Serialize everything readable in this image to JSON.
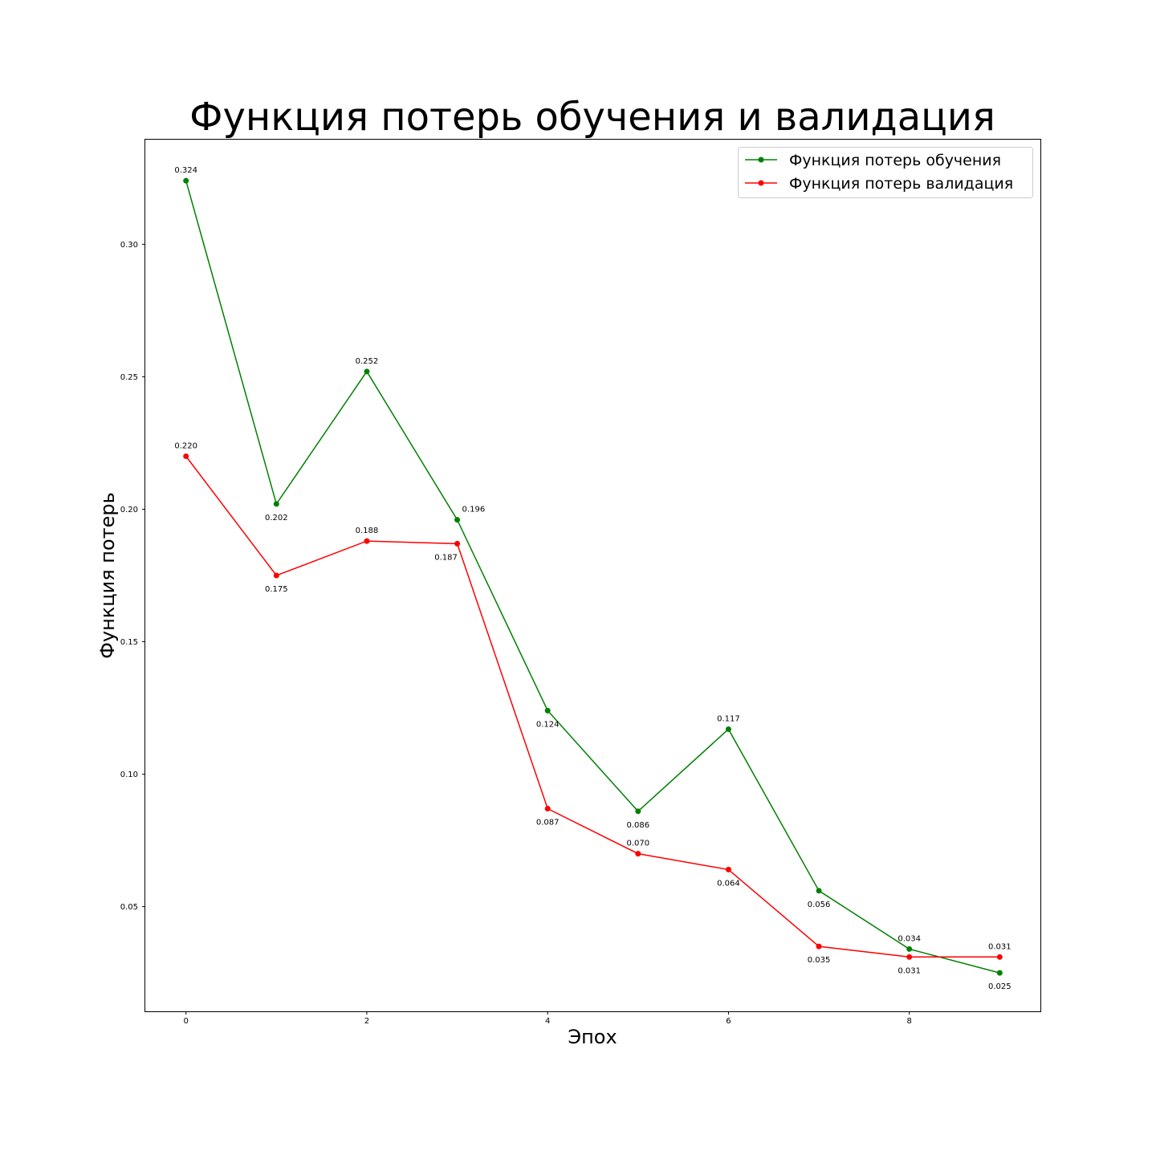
{
  "chart_data": {
    "type": "line",
    "title": "Функция потерь обучения и валидация",
    "xlabel": "Эпох",
    "ylabel": "Функция потерь",
    "xlim": [
      -0.45,
      9.45
    ],
    "ylim": [
      0.0105,
      0.3395
    ],
    "x": [
      0,
      1,
      2,
      3,
      4,
      5,
      6,
      7,
      8,
      9
    ],
    "xticks": [
      0,
      2,
      4,
      6,
      8
    ],
    "xtick_labels": [
      "0",
      "2",
      "4",
      "6",
      "8"
    ],
    "yticks": [
      0.05,
      0.1,
      0.15,
      0.2,
      0.25,
      0.3
    ],
    "ytick_labels": [
      "0.05",
      "0.10",
      "0.15",
      "0.20",
      "0.25",
      "0.30"
    ],
    "grid": false,
    "legend_position": "top-right",
    "series": [
      {
        "name": "Функция потерь обучения",
        "color": "#008000",
        "marker": "circle",
        "values": [
          0.324,
          0.202,
          0.252,
          0.196,
          0.124,
          0.086,
          0.117,
          0.056,
          0.034,
          0.025
        ],
        "labels": [
          "0.324",
          "0.202",
          "0.252",
          "0.196",
          "0.124",
          "0.086",
          "0.117",
          "0.056",
          "0.034",
          "0.025"
        ],
        "label_placement": [
          "above",
          "below",
          "above",
          "above-right",
          "below",
          "below",
          "above",
          "below",
          "above",
          "below"
        ]
      },
      {
        "name": "Функция потерь валидация",
        "color": "#ff0000",
        "marker": "circle",
        "values": [
          0.22,
          0.175,
          0.188,
          0.187,
          0.087,
          0.07,
          0.064,
          0.035,
          0.031,
          0.031
        ],
        "labels": [
          "0.220",
          "0.175",
          "0.188",
          "0.187",
          "0.087",
          "0.070",
          "0.064",
          "0.035",
          "0.031",
          "0.031"
        ],
        "label_placement": [
          "above",
          "below",
          "above",
          "below-left",
          "below",
          "above",
          "below",
          "below",
          "below",
          "above"
        ]
      }
    ]
  }
}
